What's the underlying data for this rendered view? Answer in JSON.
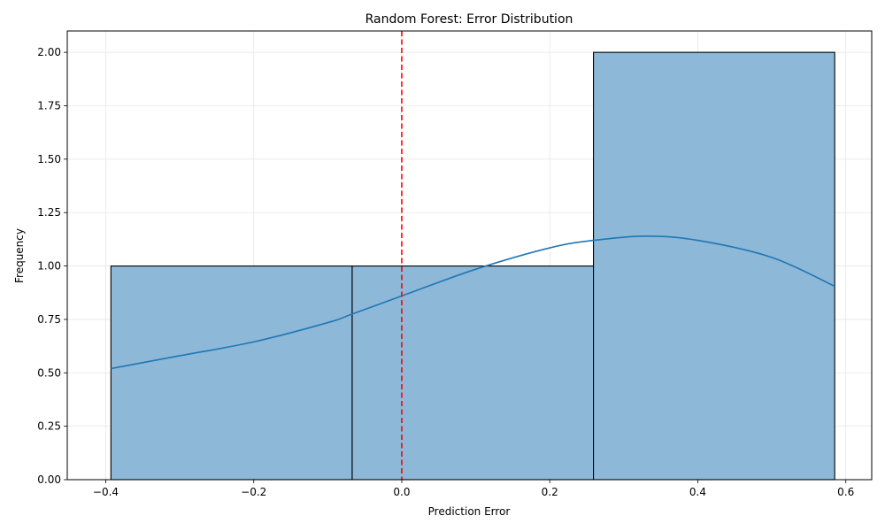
{
  "chart_data": {
    "type": "histogram",
    "title": "Random Forest: Error Distribution",
    "xlabel": "Prediction Error",
    "ylabel": "Frequency",
    "xlim": [
      -0.452,
      0.635
    ],
    "ylim": [
      0,
      2.1
    ],
    "grid": true,
    "bins": [
      {
        "start": -0.393,
        "end": -0.067,
        "count": 1
      },
      {
        "start": -0.067,
        "end": 0.259,
        "count": 1
      },
      {
        "start": 0.259,
        "end": 0.585,
        "count": 2
      }
    ],
    "kde": {
      "x": [
        -0.393,
        -0.3,
        -0.2,
        -0.1,
        -0.067,
        0.0,
        0.1,
        0.2,
        0.259,
        0.33,
        0.4,
        0.5,
        0.585
      ],
      "y": [
        0.52,
        0.58,
        0.645,
        0.735,
        0.775,
        0.86,
        0.985,
        1.085,
        1.12,
        1.14,
        1.12,
        1.04,
        0.905
      ]
    },
    "reference_line": {
      "x": 0.0,
      "color": "#ff0000",
      "style": "dashed"
    },
    "xticks": [
      {
        "value": -0.4,
        "label": "−0.4"
      },
      {
        "value": -0.2,
        "label": "−0.2"
      },
      {
        "value": 0.0,
        "label": "0.0"
      },
      {
        "value": 0.2,
        "label": "0.2"
      },
      {
        "value": 0.4,
        "label": "0.4"
      },
      {
        "value": 0.6,
        "label": "0.6"
      }
    ],
    "yticks": [
      {
        "value": 0.0,
        "label": "0.00"
      },
      {
        "value": 0.25,
        "label": "0.25"
      },
      {
        "value": 0.5,
        "label": "0.50"
      },
      {
        "value": 0.75,
        "label": "0.75"
      },
      {
        "value": 1.0,
        "label": "1.00"
      },
      {
        "value": 1.25,
        "label": "1.25"
      },
      {
        "value": 1.5,
        "label": "1.50"
      },
      {
        "value": 1.75,
        "label": "1.75"
      },
      {
        "value": 2.0,
        "label": "2.00"
      }
    ],
    "colors": {
      "bar_fill": "#8db8d8",
      "bar_edge": "#000000",
      "kde_line": "#1f77b4",
      "grid": "#e6e6e6"
    }
  }
}
